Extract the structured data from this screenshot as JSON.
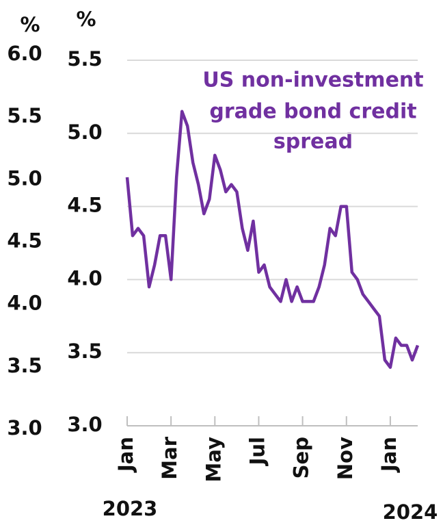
{
  "chart_data": {
    "type": "line",
    "annotation_lines": [
      "US non-investment",
      "grade bond credit",
      "spread"
    ],
    "ylabel": "%",
    "y2label": "%",
    "categories": [
      "Jan",
      null,
      null,
      null,
      null,
      null,
      null,
      null,
      "Mar",
      null,
      null,
      null,
      null,
      null,
      null,
      null,
      "May",
      null,
      null,
      null,
      null,
      null,
      null,
      null,
      "Jul",
      null,
      null,
      null,
      null,
      null,
      null,
      null,
      "Sep",
      null,
      null,
      null,
      null,
      null,
      null,
      null,
      "Nov",
      null,
      null,
      null,
      null,
      null,
      null,
      null,
      "Jan",
      null,
      null,
      null,
      null,
      null
    ],
    "years": [
      "2023",
      "2024"
    ],
    "series": [
      {
        "name": "US non-investment grade bond credit spread",
        "color": "#7030a0",
        "values": [
          4.7,
          4.3,
          4.35,
          4.3,
          3.95,
          4.1,
          4.3,
          4.3,
          4.0,
          4.7,
          5.15,
          5.05,
          4.8,
          4.65,
          4.45,
          4.55,
          4.85,
          4.75,
          4.6,
          4.65,
          4.6,
          4.35,
          4.2,
          4.4,
          4.05,
          4.1,
          3.95,
          3.9,
          3.85,
          4.0,
          3.85,
          3.95,
          3.85,
          3.85,
          3.85,
          3.95,
          4.1,
          4.35,
          4.3,
          4.5,
          4.5,
          4.05,
          4.0,
          3.9,
          3.85,
          3.8,
          3.75,
          3.45,
          3.4,
          3.6,
          3.55,
          3.55,
          3.45,
          3.55
        ]
      }
    ],
    "ylim": [
      3.0,
      5.5
    ],
    "yticks": [
      {
        "value": 3.0,
        "label": "3.0"
      },
      3.5,
      {
        "value": 4.0,
        "label": "4.0"
      },
      4.5,
      {
        "value": 5.0,
        "label": "5.0"
      },
      5.5
    ],
    "y2lim": [
      3.0,
      6.0
    ],
    "y2ticks": [
      {
        "value": 3.0,
        "label": "3.0"
      },
      3.5,
      {
        "value": 4.0,
        "label": "4.0"
      },
      4.5,
      {
        "value": 5.0,
        "label": "5.0"
      },
      5.5,
      {
        "value": 6.0,
        "label": "6.0"
      }
    ],
    "grid": true
  }
}
